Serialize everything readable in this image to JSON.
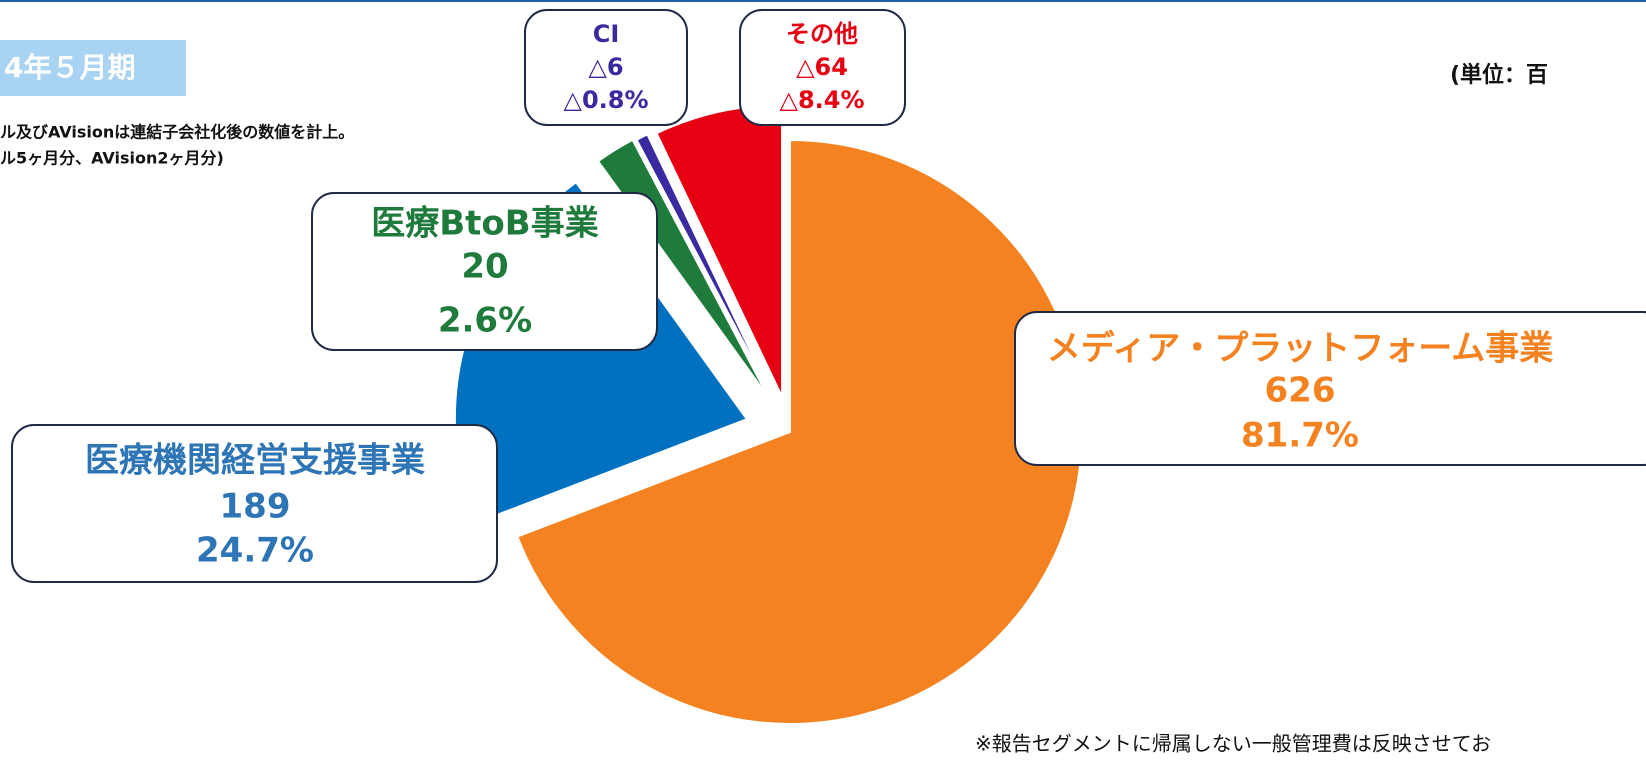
{
  "chart_data": {
    "type": "pie",
    "period_label": "4年５月期",
    "notes": [
      "ル及びAVisionは連結子会社化後の数値を計上。",
      "ル5ヶ月分、AVision2ヶ月分)"
    ],
    "unit_label": "(単位：百",
    "footnote": "※報告セグメントに帰属しない一般管理費は反映させてお",
    "categories": [
      "メディア・プラットフォーム事業",
      "医療機関経営支援事業",
      "医療BtoB事業",
      "CI",
      "その他"
    ],
    "values": [
      626,
      189,
      20,
      -6,
      -64
    ],
    "value_labels": [
      "626",
      "189",
      "20",
      "△6",
      "△64"
    ],
    "percent_labels": [
      "81.7%",
      "24.7%",
      "2.6%",
      "△0.8%",
      "△8.4%"
    ],
    "colors": [
      "#f58220",
      "#0070c0",
      "#1e7b3c",
      "#3a2aa0",
      "#e60012"
    ]
  }
}
